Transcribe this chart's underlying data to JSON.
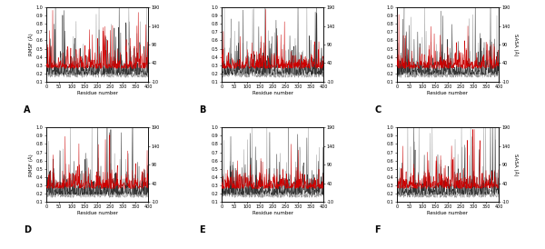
{
  "panels": [
    "A",
    "B",
    "C",
    "D",
    "E",
    "F"
  ],
  "n_residues": 400,
  "rmsf_ylim": [
    0.1,
    1.0
  ],
  "rmsf_yticks": [
    0.1,
    0.2,
    0.3,
    0.4,
    0.5,
    0.6,
    0.7,
    0.8,
    0.9,
    1.0
  ],
  "rmsf_yticklabels": [
    "0.1",
    "0.2",
    "0.3",
    "0.4",
    "0.5",
    "0.6",
    "0.7",
    "0.8",
    "0.9",
    "1.0"
  ],
  "sasa_ylim": [
    -10,
    190
  ],
  "sasa_yticks": [
    -10,
    40,
    90,
    140,
    190
  ],
  "sasa_yticklabels": [
    "-10",
    "40",
    "90",
    "140",
    "190"
  ],
  "xlim": [
    0,
    400
  ],
  "xticks": [
    0,
    50,
    100,
    150,
    200,
    250,
    300,
    350,
    400
  ],
  "xlabel": "Residue number",
  "ylabel_left": "RMSF (Å)",
  "ylabel_right": "SASA (Å)",
  "color_dark": "#333333",
  "color_light": "#999999",
  "color_red": "#cc0000",
  "seed": 42,
  "figsize": [
    6.0,
    2.74
  ],
  "dpi": 100,
  "lw": 0.35
}
